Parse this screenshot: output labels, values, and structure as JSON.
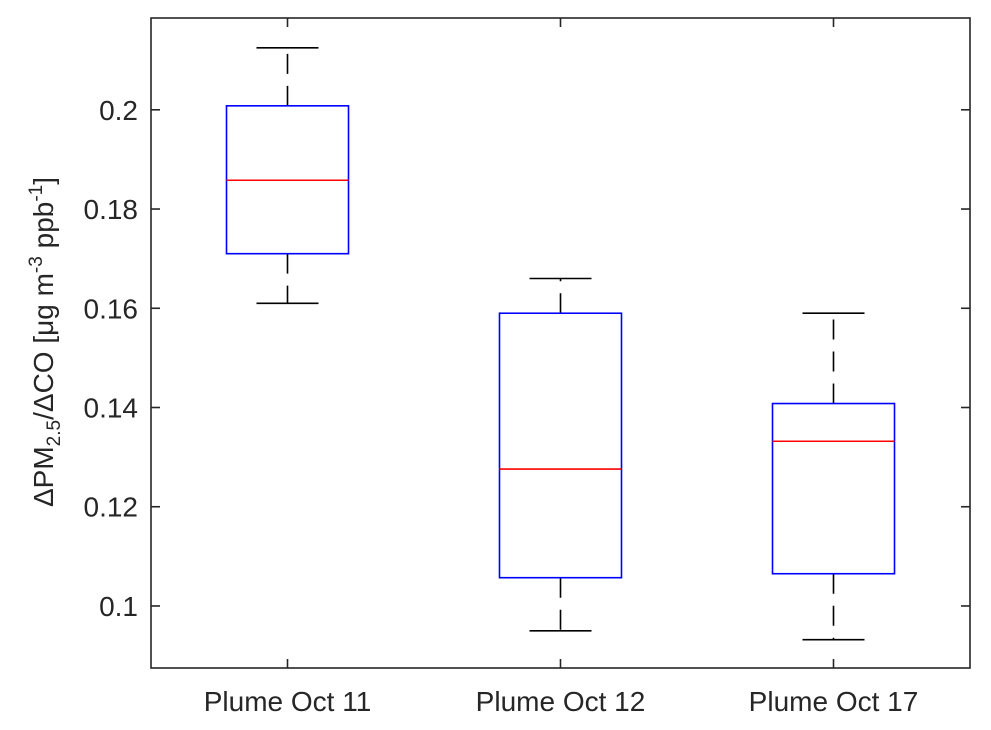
{
  "chart_data": {
    "type": "box",
    "title": "",
    "xlabel": "",
    "ylabel": {
      "delta": "Δ",
      "pm": "PM",
      "pm_sub": "2.5",
      "ratio": "/ΔCO [μg m",
      "exp1": "-3",
      "mid": " ppb",
      "exp2": "-1",
      "end": "]"
    },
    "ylim": [
      0.0875,
      0.2185
    ],
    "yticks": [
      0.1,
      0.12,
      0.14,
      0.16,
      0.18,
      0.2
    ],
    "ytick_labels": [
      "0.1",
      "0.12",
      "0.14",
      "0.16",
      "0.18",
      "0.2"
    ],
    "categories": [
      "Plume Oct 11",
      "Plume Oct 12",
      "Plume Oct 17"
    ],
    "boxes": [
      {
        "category": "Plume Oct 11",
        "whisker_low": 0.161,
        "q1": 0.171,
        "median": 0.1858,
        "q3": 0.2008,
        "whisker_high": 0.2125
      },
      {
        "category": "Plume Oct 12",
        "whisker_low": 0.095,
        "q1": 0.1057,
        "median": 0.1276,
        "q3": 0.159,
        "whisker_high": 0.166
      },
      {
        "category": "Plume Oct 17",
        "whisker_low": 0.0932,
        "q1": 0.1065,
        "median": 0.1332,
        "q3": 0.1408,
        "whisker_high": 0.159
      }
    ],
    "colors": {
      "box": "#0000ff",
      "median": "#ff0000",
      "whisker": "#000000",
      "axis": "#262626"
    },
    "grid": false
  }
}
